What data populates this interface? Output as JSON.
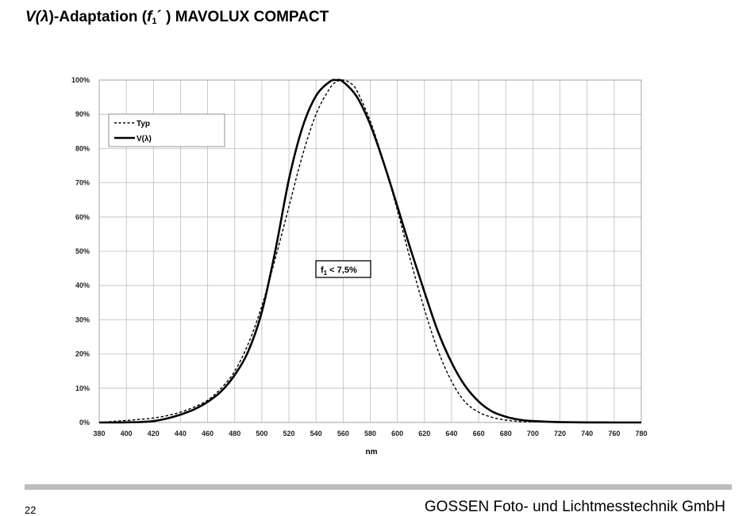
{
  "header": {
    "title_v": "V(",
    "title_lambda": "λ",
    "title_mid": ")-Adaptation (",
    "title_f": "f",
    "title_sub": "1",
    "title_end": "´ ) MAVOLUX COMPACT"
  },
  "footer": {
    "page_number": "22",
    "company": "GOSSEN Foto- und Lichtmesstechnik GmbH"
  },
  "colors": {
    "grid": "#bdbdbd",
    "line": "#000000",
    "footer_bar": "#bdbdbd"
  },
  "chart_data": {
    "type": "line",
    "xlabel": "nm",
    "ylabel": "",
    "xlim": [
      380,
      780
    ],
    "ylim": [
      0,
      100
    ],
    "x_ticks": [
      380,
      400,
      420,
      440,
      460,
      480,
      500,
      520,
      540,
      560,
      580,
      600,
      620,
      640,
      660,
      680,
      700,
      720,
      740,
      760,
      780
    ],
    "y_ticks": [
      "0%",
      "10%",
      "20%",
      "30%",
      "40%",
      "50%",
      "60%",
      "70%",
      "80%",
      "90%",
      "100%"
    ],
    "grid": true,
    "legend_position": "top-left",
    "annotation": {
      "text_f": "f",
      "text_sub": "1",
      "text_rest": " < 7,5%",
      "x": 550,
      "y": 45
    },
    "series": [
      {
        "name": "Typ",
        "style": "dashed",
        "x": [
          380,
          390,
          400,
          410,
          420,
          430,
          440,
          450,
          460,
          470,
          480,
          490,
          500,
          510,
          520,
          530,
          540,
          550,
          555,
          560,
          565,
          570,
          580,
          590,
          600,
          610,
          620,
          630,
          640,
          650,
          660,
          670,
          680,
          690,
          700,
          720,
          740,
          760,
          780
        ],
        "y": [
          0,
          0.3,
          0.6,
          0.9,
          1.3,
          2.0,
          3.0,
          4.5,
          6.5,
          10.0,
          15.0,
          23.0,
          34.0,
          48.0,
          63.0,
          78.0,
          90.0,
          97.5,
          99.5,
          100.0,
          99.2,
          97.0,
          88.0,
          76.0,
          62.0,
          47.0,
          33.0,
          21.0,
          12.0,
          6.0,
          3.0,
          1.5,
          0.7,
          0.3,
          0.2,
          0.1,
          0.05,
          0,
          0
        ]
      },
      {
        "name": "V(λ)",
        "style": "solid",
        "x": [
          380,
          390,
          400,
          410,
          420,
          430,
          440,
          450,
          460,
          470,
          480,
          490,
          500,
          510,
          520,
          530,
          540,
          550,
          555,
          560,
          570,
          580,
          590,
          600,
          610,
          620,
          630,
          640,
          650,
          660,
          670,
          680,
          690,
          700,
          720,
          740,
          760,
          780
        ],
        "y": [
          0,
          0.01,
          0.04,
          0.12,
          0.4,
          1.16,
          2.3,
          3.8,
          6.0,
          9.1,
          13.9,
          20.8,
          32.3,
          50.3,
          71.0,
          86.2,
          95.4,
          99.5,
          100.0,
          99.5,
          95.2,
          87.0,
          75.7,
          63.1,
          50.3,
          38.1,
          26.5,
          17.5,
          10.7,
          6.1,
          3.2,
          1.7,
          0.82,
          0.41,
          0.1,
          0.02,
          0.01,
          0
        ]
      }
    ]
  }
}
